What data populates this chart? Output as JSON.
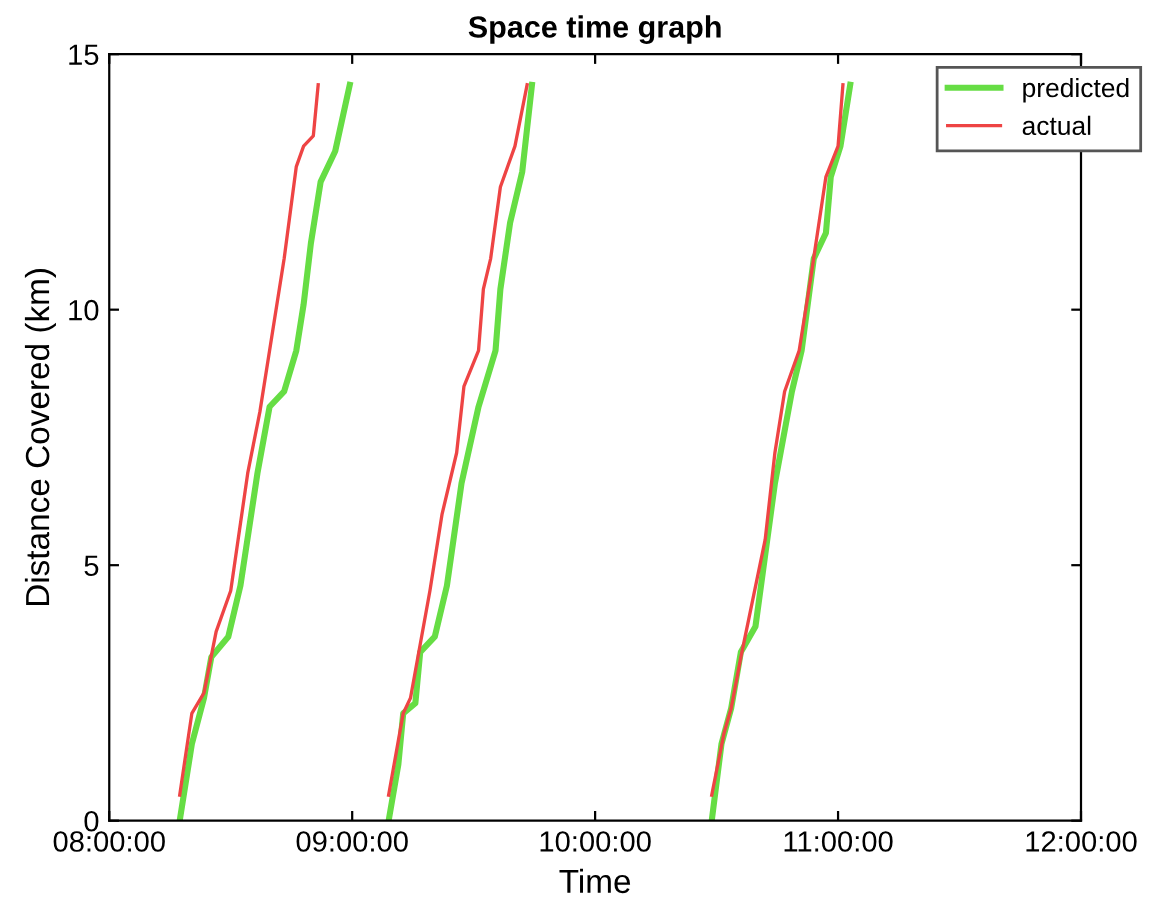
{
  "chart_data": {
    "type": "line",
    "title": "Space time graph",
    "xlabel": "Time",
    "ylabel": "Distance Covered (km)",
    "xlim": [
      8,
      12
    ],
    "xticks": [
      {
        "value": 8,
        "label": "08:00:00"
      },
      {
        "value": 9,
        "label": "09:00:00"
      },
      {
        "value": 10,
        "label": "10:00:00"
      },
      {
        "value": 11,
        "label": "11:00:00"
      },
      {
        "value": 12,
        "label": "12:00:00"
      }
    ],
    "ylim": [
      0,
      15
    ],
    "yticks": [
      0,
      5,
      10,
      15
    ],
    "grid": false,
    "legend": "top right",
    "marker": "none",
    "line_style": "solid",
    "series": [
      {
        "name": "predicted",
        "color": "#66dd44",
        "x": [
          8.29,
          8.34,
          8.39,
          8.42,
          8.49,
          8.54,
          8.61,
          8.66,
          8.72,
          8.77,
          8.8,
          8.83,
          8.87,
          8.93,
          8.99,
          9.07,
          9.15,
          9.19,
          9.21,
          9.26,
          9.28,
          9.34,
          9.39,
          9.45,
          9.52,
          9.59,
          9.61,
          9.65,
          9.7,
          9.74,
          10.1,
          10.48,
          10.52,
          10.56,
          10.6,
          10.66,
          10.74,
          10.81,
          10.85,
          10.9,
          10.95,
          10.97,
          11.01,
          11.05
        ],
        "values": [
          0.0,
          1.5,
          2.4,
          3.2,
          3.6,
          4.6,
          6.8,
          8.1,
          8.4,
          9.2,
          10.1,
          11.3,
          12.5,
          13.1,
          14.4,
          null,
          0.0,
          1.1,
          2.1,
          2.3,
          3.3,
          3.6,
          4.6,
          6.6,
          8.1,
          9.2,
          10.4,
          11.7,
          12.7,
          14.4,
          null,
          0.0,
          1.5,
          2.2,
          3.3,
          3.8,
          6.6,
          8.4,
          9.2,
          11.0,
          11.5,
          12.6,
          13.2,
          14.4
        ]
      },
      {
        "name": "actual",
        "color": "#ee4444",
        "x": [
          8.29,
          8.34,
          8.39,
          8.44,
          8.5,
          8.57,
          8.62,
          8.66,
          8.72,
          8.77,
          8.8,
          8.84,
          8.86,
          9.0,
          9.15,
          9.21,
          9.24,
          9.32,
          9.37,
          9.43,
          9.46,
          9.52,
          9.54,
          9.57,
          9.61,
          9.67,
          9.72,
          10.1,
          10.48,
          10.53,
          10.56,
          10.6,
          10.7,
          10.74,
          10.78,
          10.84,
          10.89,
          10.95,
          11.0,
          11.02
        ],
        "values": [
          0.5,
          2.1,
          2.5,
          3.7,
          4.5,
          6.8,
          8.0,
          9.2,
          11.0,
          12.8,
          13.2,
          13.4,
          14.4,
          null,
          0.5,
          2.1,
          2.4,
          4.5,
          6.0,
          7.2,
          8.5,
          9.2,
          10.4,
          11.0,
          12.4,
          13.2,
          14.4,
          null,
          0.5,
          1.7,
          2.2,
          3.2,
          5.5,
          7.2,
          8.4,
          9.2,
          10.7,
          12.6,
          13.2,
          14.4
        ]
      }
    ]
  }
}
